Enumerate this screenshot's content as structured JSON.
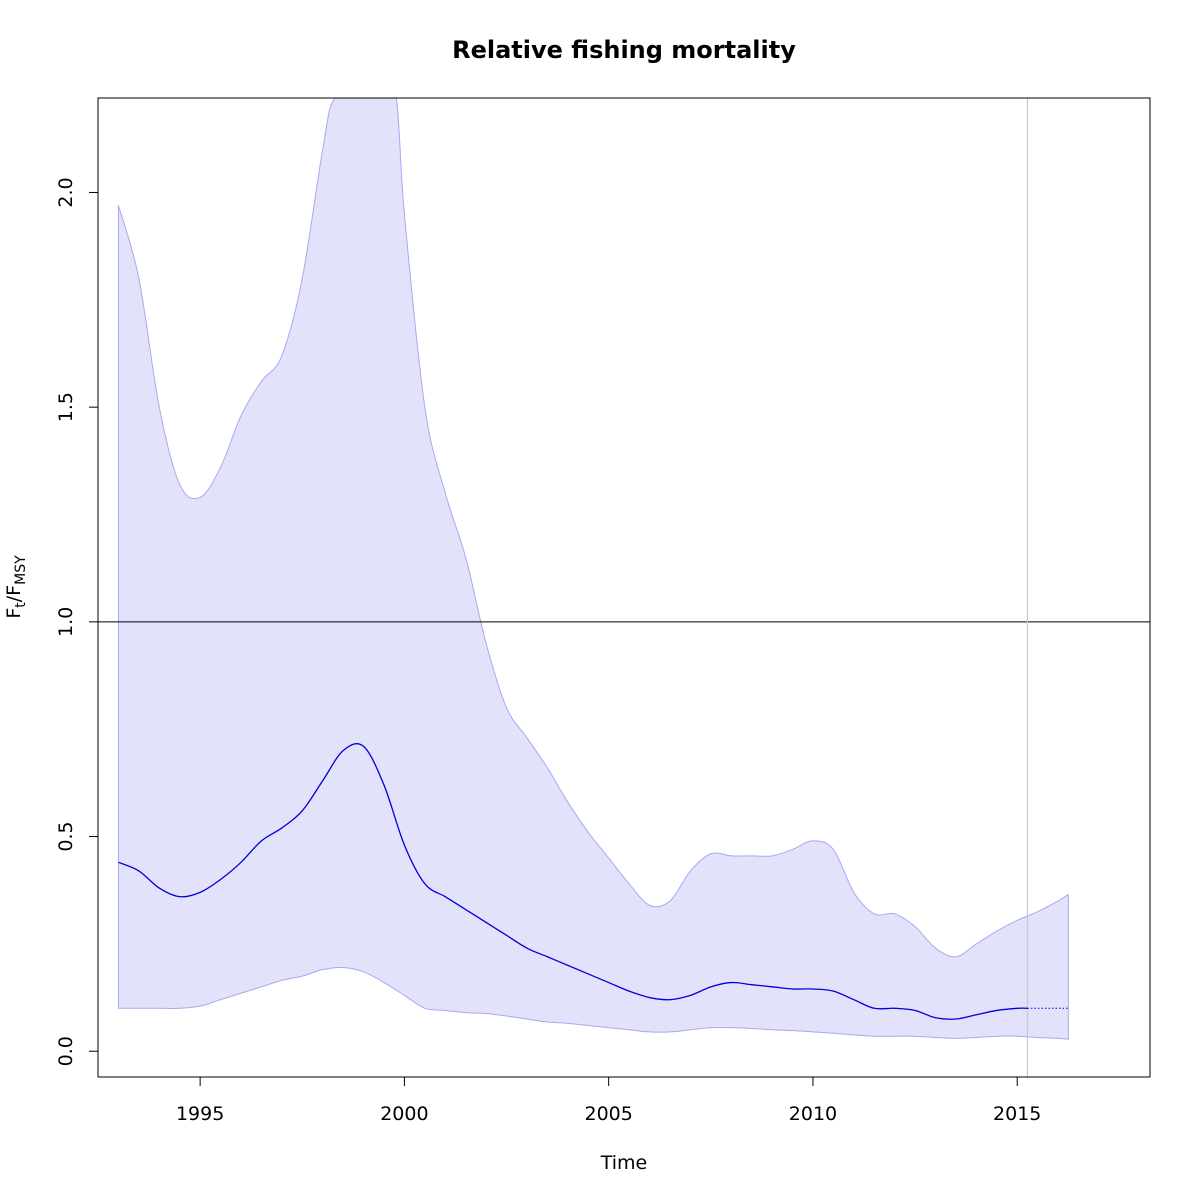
{
  "chart_data": {
    "type": "area",
    "title": "Relative fishing mortality",
    "xlabel": "Time",
    "ylabel": {
      "main": "F",
      "sub1": "t",
      "slash": "/F",
      "sub2": "MSY"
    },
    "xlim": [
      1992.5,
      2018.25
    ],
    "ylim": [
      -0.06,
      2.22
    ],
    "x_ticks": [
      1995,
      2000,
      2005,
      2010,
      2015
    ],
    "y_ticks": [
      0.0,
      0.5,
      1.0,
      1.5,
      2.0
    ],
    "x_tick_labels": [
      "1995",
      "2000",
      "2005",
      "2010",
      "2015"
    ],
    "y_tick_labels": [
      "0.0",
      "0.5",
      "1.0",
      "1.5",
      "2.0"
    ],
    "reference_hline": 1.0,
    "reference_vline": 2015.25,
    "forecast_start": 2015.25,
    "colors": {
      "line": "#0000dd",
      "band_fill": "#e2e2fb",
      "band_edge": "#a8a8f2",
      "reference": "#000000",
      "vline": "#c8c8d4"
    },
    "series": [
      {
        "x": [
          1993.0,
          1993.5,
          1994.0,
          1994.5,
          1995.0,
          1995.5,
          1996.0,
          1996.5,
          1997.0,
          1997.5,
          1998.0,
          1998.5,
          1999.0,
          1999.5,
          2000.0,
          2000.5,
          2001.0,
          2001.5,
          2002.0,
          2002.5,
          2003.0,
          2003.5,
          2004.0,
          2004.5,
          2005.0,
          2005.5,
          2006.0,
          2006.5,
          2007.0,
          2007.5,
          2008.0,
          2008.5,
          2009.0,
          2009.5,
          2010.0,
          2010.5,
          2011.0,
          2011.5,
          2012.0,
          2012.5,
          2013.0,
          2013.5,
          2014.0,
          2014.5,
          2015.0,
          2015.25
        ],
        "values": [
          0.44,
          0.42,
          0.38,
          0.36,
          0.37,
          0.4,
          0.44,
          0.49,
          0.52,
          0.56,
          0.63,
          0.7,
          0.71,
          0.62,
          0.48,
          0.39,
          0.36,
          0.33,
          0.3,
          0.27,
          0.24,
          0.22,
          0.2,
          0.18,
          0.16,
          0.14,
          0.125,
          0.12,
          0.13,
          0.15,
          0.16,
          0.155,
          0.15,
          0.145,
          0.145,
          0.14,
          0.12,
          0.1,
          0.1,
          0.095,
          0.078,
          0.075,
          0.085,
          0.095,
          0.1,
          0.1
        ]
      },
      {
        "x": [
          2015.25,
          2016.25
        ],
        "values": [
          0.1,
          0.1
        ]
      },
      {
        "x": [
          1993.0,
          1993.5,
          1994.0,
          1994.5,
          1995.0,
          1995.5,
          1996.0,
          1996.5,
          1997.0,
          1997.5,
          1998.0,
          1998.3,
          1999.0,
          1999.5,
          1999.8,
          2000.0,
          2000.5,
          2001.0,
          2001.5,
          2002.0,
          2002.5,
          2003.0,
          2003.5,
          2004.0,
          2004.5,
          2005.0,
          2005.5,
          2006.0,
          2006.5,
          2007.0,
          2007.5,
          2008.0,
          2008.5,
          2009.0,
          2009.5,
          2010.0,
          2010.5,
          2011.0,
          2011.5,
          2012.0,
          2012.5,
          2013.0,
          2013.5,
          2014.0,
          2014.5,
          2015.0,
          2015.5,
          2016.0,
          2016.25
        ],
        "values": [
          1.97,
          1.8,
          1.5,
          1.32,
          1.29,
          1.36,
          1.48,
          1.56,
          1.62,
          1.8,
          2.1,
          2.22,
          2.22,
          2.22,
          2.22,
          1.95,
          1.5,
          1.3,
          1.15,
          0.95,
          0.8,
          0.73,
          0.66,
          0.58,
          0.51,
          0.45,
          0.39,
          0.34,
          0.35,
          0.42,
          0.46,
          0.455,
          0.455,
          0.455,
          0.47,
          0.49,
          0.47,
          0.37,
          0.32,
          0.32,
          0.29,
          0.24,
          0.22,
          0.25,
          0.28,
          0.305,
          0.325,
          0.35,
          0.365
        ]
      },
      {
        "x": [
          1993.0,
          1993.5,
          1994.0,
          1994.5,
          1995.0,
          1995.5,
          1996.0,
          1996.5,
          1997.0,
          1997.5,
          1998.0,
          1998.5,
          1999.0,
          1999.5,
          2000.0,
          2000.5,
          2001.0,
          2001.5,
          2002.0,
          2002.5,
          2003.0,
          2003.5,
          2004.0,
          2004.5,
          2005.0,
          2005.5,
          2006.0,
          2006.5,
          2007.0,
          2007.5,
          2008.0,
          2008.5,
          2009.0,
          2009.5,
          2010.0,
          2010.5,
          2011.0,
          2011.5,
          2012.0,
          2012.5,
          2013.0,
          2013.5,
          2014.0,
          2014.5,
          2015.0,
          2015.5,
          2016.0,
          2016.25
        ],
        "values": [
          0.1,
          0.1,
          0.1,
          0.1,
          0.105,
          0.12,
          0.135,
          0.15,
          0.165,
          0.175,
          0.19,
          0.195,
          0.185,
          0.16,
          0.13,
          0.1,
          0.095,
          0.09,
          0.088,
          0.082,
          0.075,
          0.068,
          0.065,
          0.06,
          0.055,
          0.05,
          0.045,
          0.045,
          0.05,
          0.055,
          0.055,
          0.053,
          0.05,
          0.048,
          0.045,
          0.042,
          0.038,
          0.035,
          0.035,
          0.035,
          0.032,
          0.03,
          0.032,
          0.035,
          0.035,
          0.032,
          0.03,
          0.028
        ]
      }
    ]
  }
}
